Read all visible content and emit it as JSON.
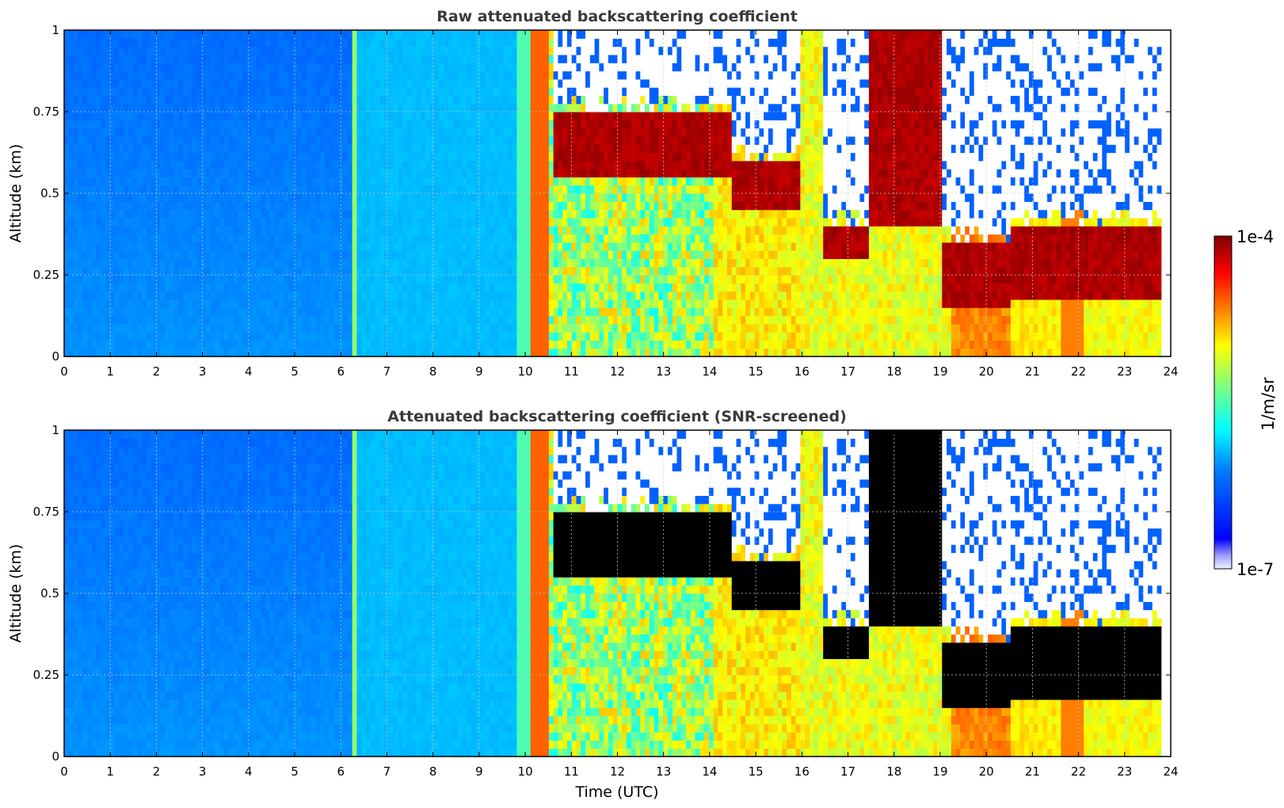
{
  "colors": {
    "jet": [
      "#00007f",
      "#0000ff",
      "#007fff",
      "#00ffff",
      "#7fff7f",
      "#ffff00",
      "#ff7f00",
      "#ff0000",
      "#7f0000"
    ],
    "screened": "#000000",
    "grid": "#c8c8c8"
  },
  "chart_data": [
    {
      "type": "heatmap",
      "title": "Raw attenuated backscattering coefficient",
      "xlabel": "",
      "ylabel": "Altitude (km)",
      "xlim": [
        0,
        24
      ],
      "ylim": [
        0,
        1
      ],
      "xticks": [
        "0",
        "1",
        "2",
        "3",
        "4",
        "5",
        "6",
        "7",
        "8",
        "9",
        "10",
        "11",
        "12",
        "13",
        "14",
        "15",
        "16",
        "17",
        "18",
        "19",
        "20",
        "21",
        "22",
        "23",
        "24"
      ],
      "yticks": [
        "0",
        "0.25",
        "0.5",
        "0.75",
        "1"
      ],
      "grid": true,
      "screened": false,
      "cloud_layers": [
        {
          "start": 10.6,
          "end": 14.5,
          "base_km": 0.55,
          "top_km": 0.75
        },
        {
          "start": 14.5,
          "end": 16.0,
          "base_km": 0.45,
          "top_km": 0.6
        },
        {
          "start": 16.5,
          "end": 17.5,
          "base_km": 0.3,
          "top_km": 0.4
        },
        {
          "start": 17.5,
          "end": 19.0,
          "base_km": 0.4,
          "top_km": 1.0
        },
        {
          "start": 19.0,
          "end": 20.5,
          "base_km": 0.15,
          "top_km": 0.35
        },
        {
          "start": 20.5,
          "end": 23.8,
          "base_km": 0.18,
          "top_km": 0.4
        }
      ]
    },
    {
      "type": "heatmap",
      "title": "Attenuated backscattering coefficient (SNR-screened)",
      "xlabel": "Time (UTC)",
      "ylabel": "Altitude (km)",
      "xlim": [
        0,
        24
      ],
      "ylim": [
        0,
        1
      ],
      "xticks": [
        "0",
        "1",
        "2",
        "3",
        "4",
        "5",
        "6",
        "7",
        "8",
        "9",
        "10",
        "11",
        "12",
        "13",
        "14",
        "15",
        "16",
        "17",
        "18",
        "19",
        "20",
        "21",
        "22",
        "23",
        "24"
      ],
      "yticks": [
        "0",
        "0.25",
        "0.5",
        "0.75",
        "1"
      ],
      "grid": true,
      "screened": true,
      "cloud_layers": [
        {
          "start": 10.6,
          "end": 14.5,
          "base_km": 0.55,
          "top_km": 0.75
        },
        {
          "start": 14.5,
          "end": 16.0,
          "base_km": 0.45,
          "top_km": 0.6
        },
        {
          "start": 16.5,
          "end": 17.5,
          "base_km": 0.3,
          "top_km": 0.4
        },
        {
          "start": 17.5,
          "end": 19.0,
          "base_km": 0.4,
          "top_km": 1.0
        },
        {
          "start": 19.0,
          "end": 20.5,
          "base_km": 0.15,
          "top_km": 0.35
        },
        {
          "start": 20.5,
          "end": 23.8,
          "base_km": 0.18,
          "top_km": 0.4
        }
      ]
    }
  ],
  "colorbar": {
    "label": "1/m/sr",
    "max_label": "1e-4",
    "min_label": "1e-7",
    "scale": "log",
    "range": [
      1e-07,
      0.0001
    ]
  }
}
